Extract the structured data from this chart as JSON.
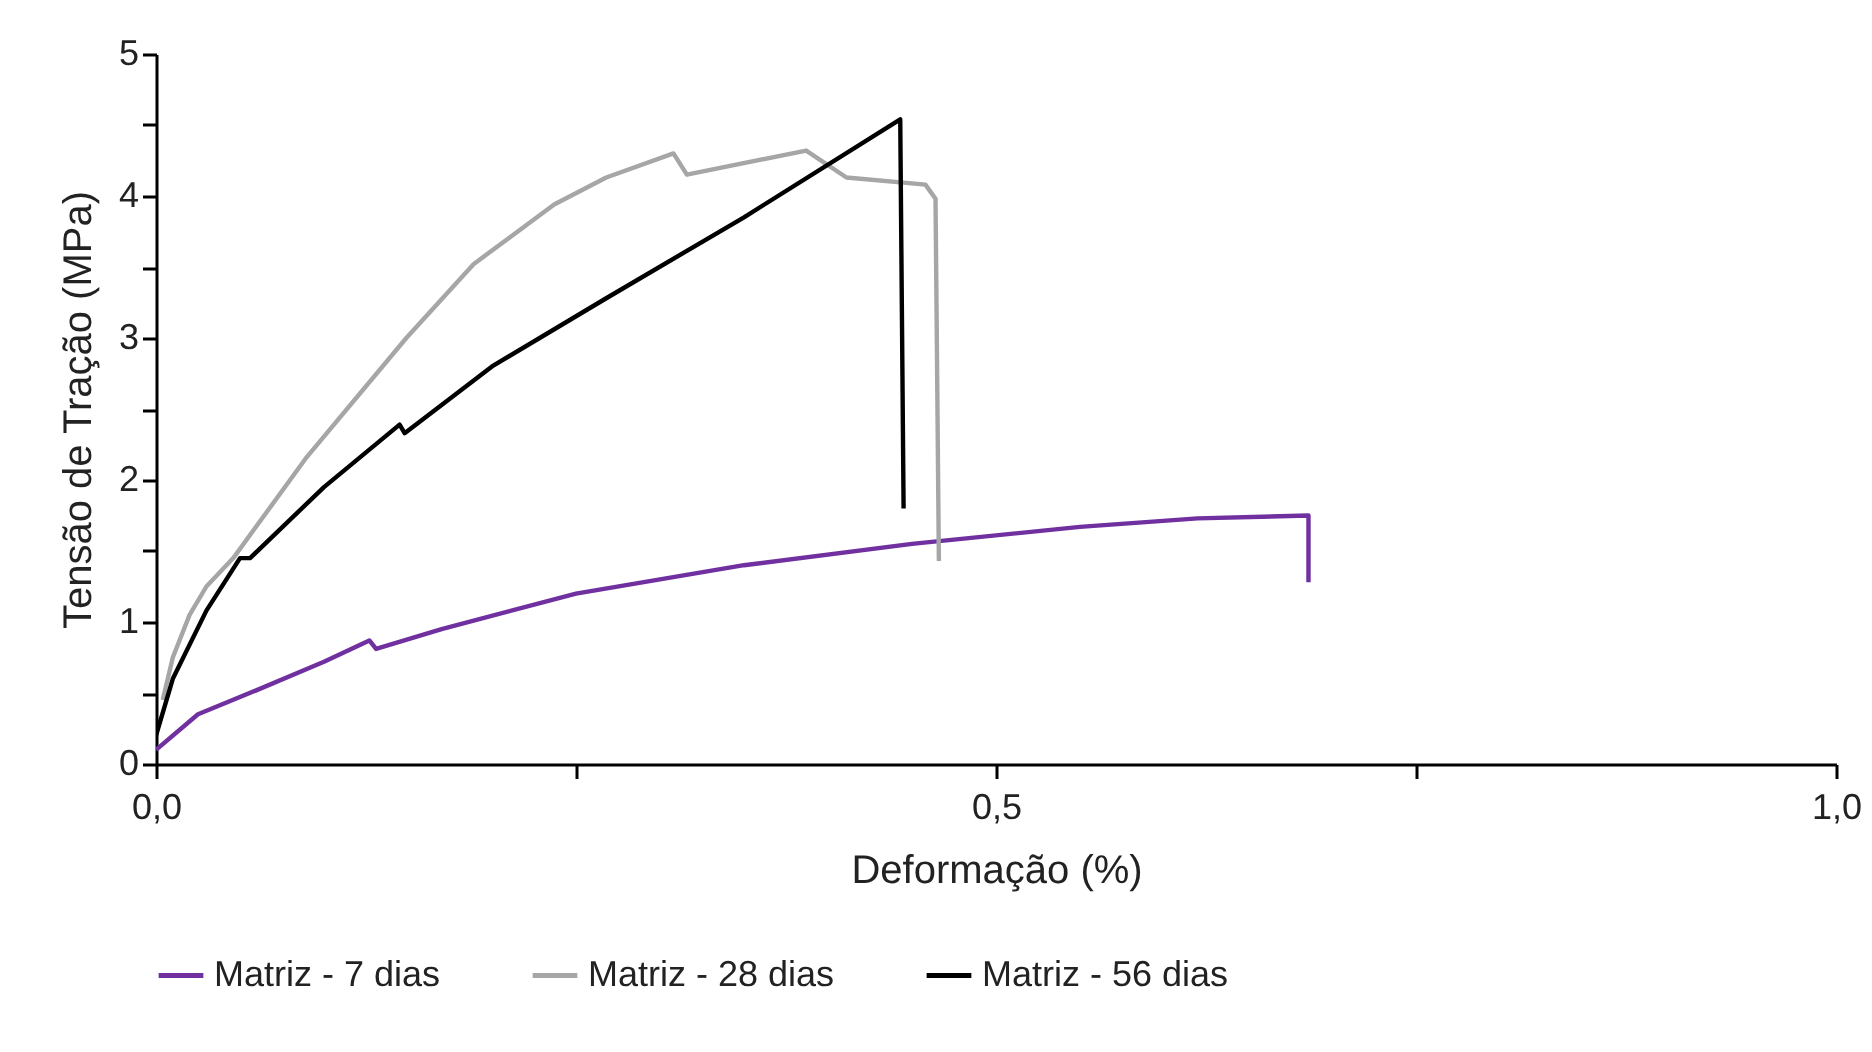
{
  "chart_data": {
    "type": "line",
    "xlabel": "Deformação (%)",
    "ylabel": "Tensão de Tração (MPa)",
    "xlim": [
      0,
      1
    ],
    "xticks": [
      {
        "value": 0,
        "label": "0,0"
      },
      {
        "value": 0.25,
        "label": null
      },
      {
        "value": 0.5,
        "label": "0,5"
      },
      {
        "value": 0.75,
        "label": null
      },
      {
        "value": 1,
        "label": "1,0"
      }
    ],
    "ylim": [
      0,
      5
    ],
    "yticks": [
      0,
      {
        "value": 0.5,
        "label": null
      },
      1,
      {
        "value": 1.5,
        "label": null
      },
      2,
      {
        "value": 2.5,
        "label": null
      },
      3,
      {
        "value": 3.5,
        "label": null
      },
      4,
      {
        "value": 4.5,
        "label": null
      },
      5
    ],
    "grid": false,
    "legend": "bottom",
    "series": [
      {
        "name": "Matriz - 7 dias",
        "color": "#7030a0",
        "x": [
          0,
          0.025,
          0.06,
          0.1,
          0.127,
          0.131,
          0.17,
          0.25,
          0.35,
          0.45,
          0.55,
          0.62,
          0.686,
          0.686
        ],
        "values": [
          0.1,
          0.35,
          0.52,
          0.72,
          0.87,
          0.81,
          0.95,
          1.2,
          1.4,
          1.55,
          1.67,
          1.73,
          1.75,
          1.28
        ]
      },
      {
        "name": "Matriz - 28 dias",
        "color": "#a6a6a6",
        "x": [
          0.004,
          0.01,
          0.02,
          0.03,
          0.046,
          0.089,
          0.149,
          0.189,
          0.237,
          0.268,
          0.308,
          0.316,
          0.387,
          0.411,
          0.458,
          0.464,
          0.466
        ],
        "values": [
          0.45,
          0.75,
          1.05,
          1.25,
          1.45,
          2.15,
          3.0,
          3.52,
          3.94,
          4.13,
          4.3,
          4.15,
          4.32,
          4.13,
          4.08,
          3.98,
          1.43
        ]
      },
      {
        "name": "Matriz - 56 dias",
        "color": "#000000",
        "x": [
          0,
          0.01,
          0.03,
          0.05,
          0.056,
          0.1,
          0.145,
          0.148,
          0.2,
          0.268,
          0.35,
          0.443,
          0.445
        ],
        "values": [
          0.2,
          0.6,
          1.08,
          1.45,
          1.45,
          1.95,
          2.39,
          2.33,
          2.8,
          3.28,
          3.85,
          4.54,
          1.8
        ]
      }
    ]
  }
}
